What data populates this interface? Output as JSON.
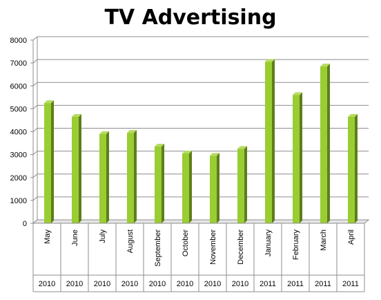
{
  "chart_data": {
    "type": "bar",
    "title": "TV Advertising",
    "categories": [
      "May",
      "June",
      "July",
      "August",
      "September",
      "October",
      "November",
      "December",
      "January",
      "February",
      "March",
      "April"
    ],
    "years": [
      "2010",
      "2010",
      "2010",
      "2010",
      "2010",
      "2010",
      "2010",
      "2010",
      "2011",
      "2011",
      "2011",
      "2011"
    ],
    "values": [
      5250,
      4650,
      3900,
      3950,
      3350,
      3050,
      2950,
      3250,
      7050,
      5600,
      6850,
      4650
    ],
    "ylim": [
      0,
      8000
    ],
    "yticks": [
      0,
      1000,
      2000,
      3000,
      4000,
      5000,
      6000,
      7000,
      8000
    ],
    "grid": true,
    "legend": "none",
    "colors": {
      "bar_front": "#9acd32",
      "bar_side": "#5e7d1c",
      "bar_top": "#b6dc62",
      "grid": "#8c8c8c",
      "wall": "#c8c8c8"
    }
  }
}
